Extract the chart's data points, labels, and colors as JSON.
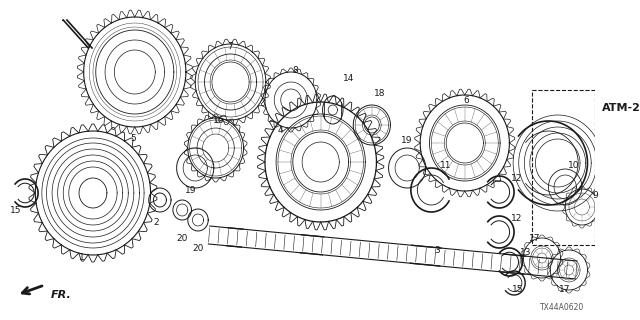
{
  "bg_color": "#ffffff",
  "fig_width": 6.4,
  "fig_height": 3.2,
  "dpi": 100,
  "atm2_label": "ATM-2",
  "diagram_code": "TX44A0620",
  "fr_label": "FR."
}
